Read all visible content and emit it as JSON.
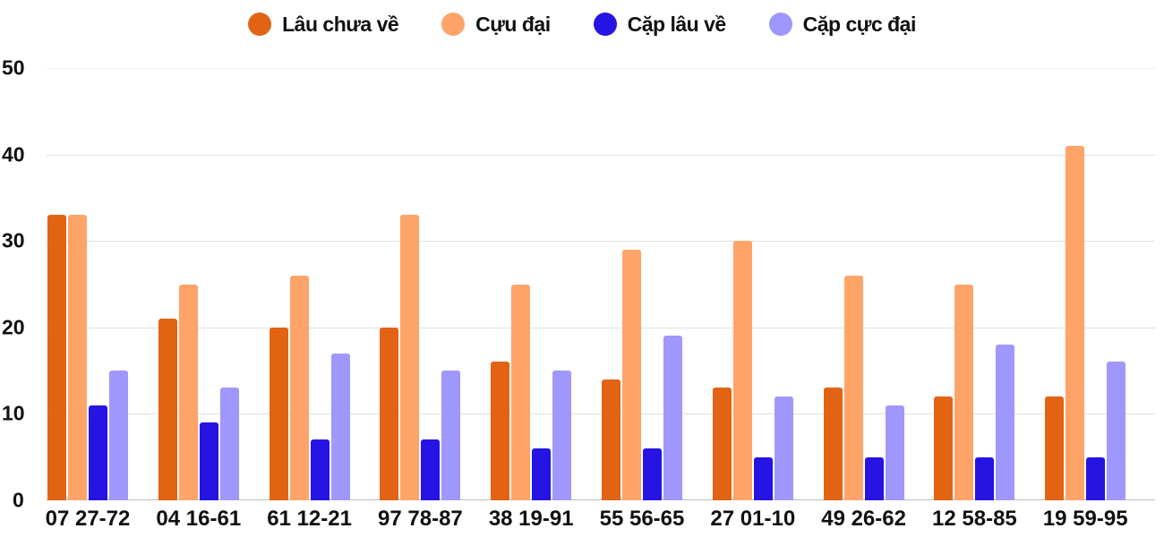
{
  "chart_data": {
    "type": "bar",
    "title": "",
    "xlabel": "",
    "ylabel": "",
    "ylim": [
      0,
      50
    ],
    "yticks": [
      0,
      10,
      20,
      30,
      40,
      50
    ],
    "grid": true,
    "legend_position": "top",
    "categories": [
      "07 27-72",
      "04 16-61",
      "61 12-21",
      "97 78-87",
      "38 19-91",
      "55 56-65",
      "27 01-10",
      "49 26-62",
      "12 58-85",
      "19 59-95"
    ],
    "series": [
      {
        "name": "Lâu chưa về",
        "color": "#e26314",
        "values": [
          33,
          21,
          20,
          20,
          16,
          14,
          13,
          13,
          12,
          12
        ]
      },
      {
        "name": "Cựu đại",
        "color": "#fea469",
        "values": [
          33,
          25,
          26,
          33,
          25,
          29,
          30,
          26,
          25,
          41
        ]
      },
      {
        "name": "Cặp lâu về",
        "color": "#2614e2",
        "values": [
          11,
          9,
          7,
          7,
          6,
          6,
          5,
          5,
          5,
          5
        ]
      },
      {
        "name": "Cặp cực đại",
        "color": "#a097fd",
        "values": [
          15,
          13,
          17,
          15,
          15,
          19,
          12,
          11,
          18,
          16
        ]
      }
    ]
  }
}
